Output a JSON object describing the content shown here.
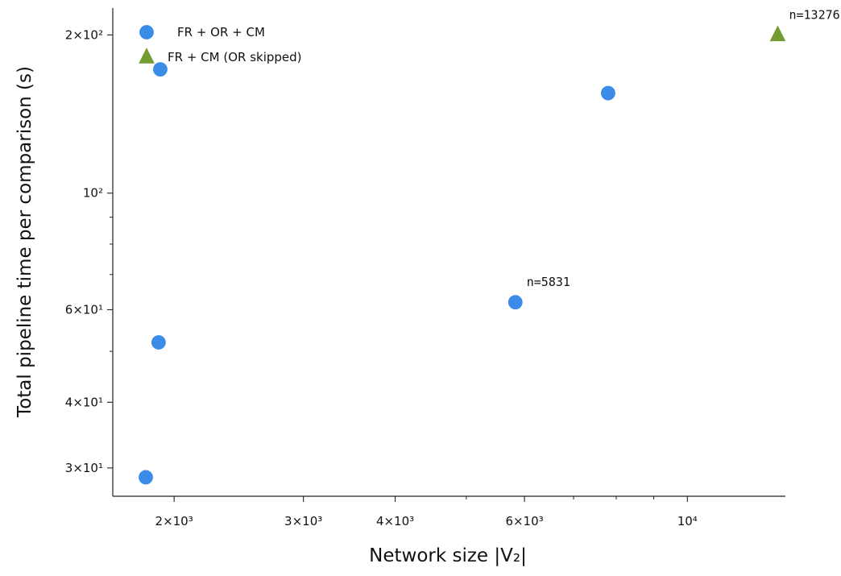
{
  "chart_data": {
    "type": "scatter",
    "xlabel": "Network size |V₂|",
    "ylabel": "Total pipeline time per comparison (s)",
    "xscale": "log",
    "yscale": "log",
    "xlim": [
      1650,
      13600
    ],
    "ylim": [
      26.5,
      225
    ],
    "x_ticks": [
      {
        "value": 2000,
        "label": "2×10³"
      },
      {
        "value": 3000,
        "label": "3×10³"
      },
      {
        "value": 4000,
        "label": "4×10³"
      },
      {
        "value": 6000,
        "label": "6×10³"
      },
      {
        "value": 10000,
        "label": "10⁴"
      }
    ],
    "x_minor_ticks": [
      5000,
      7000,
      8000,
      9000
    ],
    "y_ticks": [
      {
        "value": 30,
        "label": "3×10¹"
      },
      {
        "value": 40,
        "label": "4×10¹"
      },
      {
        "value": 60,
        "label": "6×10¹"
      },
      {
        "value": 100,
        "label": "10²"
      },
      {
        "value": 200,
        "label": "2×10²"
      }
    ],
    "y_minor_ticks": [
      50,
      70,
      80,
      90
    ],
    "series": [
      {
        "name": "FR + OR + CM",
        "marker": "circle",
        "color": "#3b8be8",
        "points": [
          {
            "x": 1830,
            "y": 28.8
          },
          {
            "x": 1905,
            "y": 52.0
          },
          {
            "x": 1915,
            "y": 172.0
          },
          {
            "x": 5831,
            "y": 62.0
          },
          {
            "x": 7800,
            "y": 155.0
          }
        ]
      },
      {
        "name": "FR + CM (OR skipped)",
        "marker": "triangle",
        "color": "#739b32",
        "points": [
          {
            "x": 13276,
            "y": 200.0
          }
        ]
      }
    ],
    "annotations": [
      {
        "text": "n=5831",
        "x": 5831,
        "y": 62.0
      },
      {
        "text": "n=13276",
        "x": 13276,
        "y": 200.0
      }
    ],
    "legend_position": "upper-left",
    "grid": false
  }
}
